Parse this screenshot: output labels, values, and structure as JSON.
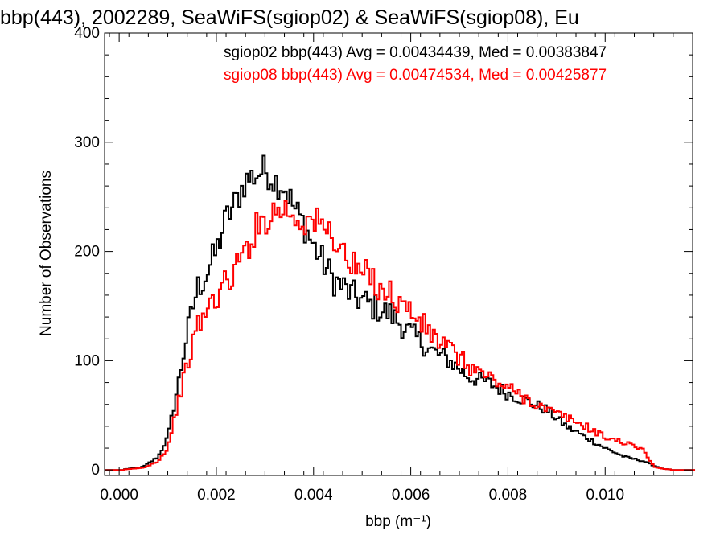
{
  "colors": {
    "sgiop02": "#000000",
    "sgiop08": "#ff0000",
    "axis": "#000000"
  },
  "chart_data": {
    "type": "histogram-step",
    "title": "bbp(443), 2002289, SeaWiFS(sgiop02) & SeaWiFS(sgiop08), Eu",
    "xlabel": "bbp (m⁻¹)",
    "ylabel": "Number of Observations",
    "xlim": [
      -0.0003,
      0.0118
    ],
    "ylim": [
      -5,
      400
    ],
    "xticks": [
      0.0,
      0.002,
      0.004,
      0.006,
      0.008,
      0.01
    ],
    "xtick_labels": [
      "0.000",
      "0.002",
      "0.004",
      "0.006",
      "0.008",
      "0.010"
    ],
    "yticks": [
      0,
      100,
      200,
      300,
      400
    ],
    "ytick_labels": [
      "0",
      "100",
      "200",
      "300",
      "400"
    ],
    "grid": false,
    "bin_width": 5e-05,
    "annotations": [
      "sgiop02 bbp(443) Avg = 0.00434439, Med = 0.00383847",
      "sgiop08 bbp(443) Avg = 0.00474534, Med = 0.00425877"
    ],
    "series": [
      {
        "name": "sgiop02",
        "color": "#000000",
        "x": [
          0.0,
          0.0005,
          0.0008,
          0.001,
          0.0012,
          0.0014,
          0.0016,
          0.0018,
          0.002,
          0.0022,
          0.0024,
          0.0026,
          0.0028,
          0.003,
          0.0032,
          0.0034,
          0.0036,
          0.0038,
          0.004,
          0.0044,
          0.0048,
          0.0052,
          0.0056,
          0.006,
          0.0064,
          0.0068,
          0.0072,
          0.0076,
          0.008,
          0.0084,
          0.0088,
          0.0092,
          0.0096,
          0.01,
          0.0104,
          0.0108,
          0.011,
          0.0112,
          0.0115
        ],
        "y": [
          0,
          3,
          12,
          30,
          75,
          125,
          165,
          180,
          200,
          230,
          245,
          265,
          270,
          275,
          265,
          260,
          240,
          225,
          205,
          175,
          160,
          150,
          142,
          125,
          110,
          100,
          85,
          80,
          70,
          63,
          55,
          40,
          30,
          20,
          12,
          8,
          4,
          1,
          0
        ]
      },
      {
        "name": "sgiop08",
        "color": "#ff0000",
        "x": [
          0.0,
          0.0005,
          0.0008,
          0.001,
          0.0012,
          0.0014,
          0.0016,
          0.0018,
          0.002,
          0.0022,
          0.0024,
          0.0026,
          0.0028,
          0.003,
          0.0032,
          0.0034,
          0.0036,
          0.0038,
          0.004,
          0.0044,
          0.0048,
          0.0052,
          0.0056,
          0.006,
          0.0064,
          0.0068,
          0.0072,
          0.0076,
          0.008,
          0.0084,
          0.0088,
          0.0092,
          0.0096,
          0.01,
          0.0104,
          0.0108,
          0.011,
          0.0112,
          0.0115
        ],
        "y": [
          0,
          2,
          8,
          20,
          60,
          95,
          130,
          145,
          160,
          170,
          185,
          200,
          220,
          230,
          237,
          240,
          232,
          228,
          228,
          215,
          185,
          175,
          160,
          145,
          125,
          110,
          95,
          85,
          75,
          65,
          55,
          48,
          40,
          30,
          25,
          18,
          3,
          1,
          0
        ]
      }
    ]
  }
}
